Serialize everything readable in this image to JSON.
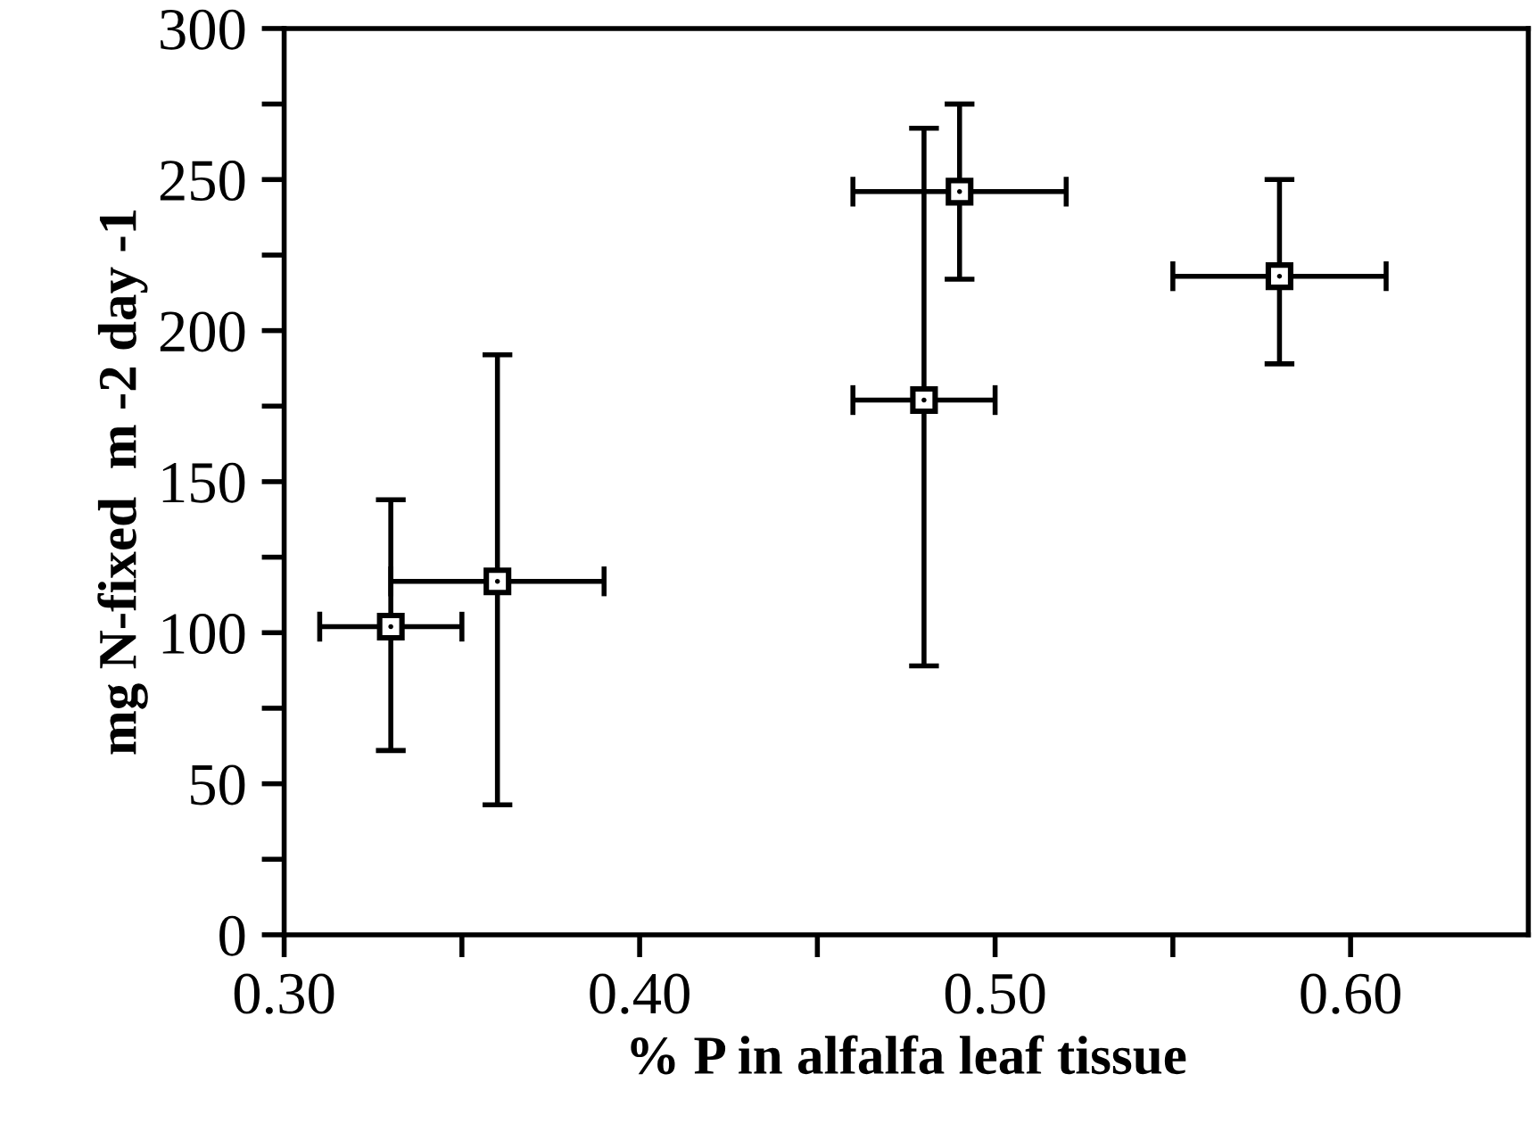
{
  "chart_data": {
    "type": "scatter",
    "xlabel": "% P in alfalfa leaf tissue",
    "ylabel": "mg N-fixed  m -2 day -1",
    "x": [
      0.33,
      0.36,
      0.49,
      0.48,
      0.58
    ],
    "series": [
      {
        "color": "#000000",
        "values": [
          102,
          117,
          246,
          177,
          218
        ],
        "errors": [
          [
            61,
            144
          ],
          [
            43,
            192
          ],
          [
            217,
            275
          ],
          [
            89,
            267
          ],
          [
            189,
            250
          ]
        ],
        "xerrors": [
          [
            0.31,
            0.35
          ],
          [
            0.33,
            0.39
          ],
          [
            0.46,
            0.52
          ],
          [
            0.46,
            0.5
          ],
          [
            0.55,
            0.61
          ]
        ]
      }
    ],
    "xlim": [
      0.3,
      0.65
    ],
    "ylim": [
      0,
      300
    ],
    "xticks": [
      {
        "value": 0.3,
        "label": "0.30"
      },
      {
        "value": 0.35,
        "label": null
      },
      {
        "value": 0.4,
        "label": "0.40"
      },
      {
        "value": 0.45,
        "label": null
      },
      {
        "value": 0.5,
        "label": "0.50"
      },
      {
        "value": 0.55,
        "label": null
      },
      {
        "value": 0.6,
        "label": "0.60"
      }
    ],
    "yticks": [
      0,
      {
        "value": 25,
        "label": null
      },
      50,
      {
        "value": 75,
        "label": null
      },
      100,
      {
        "value": 125,
        "label": null
      },
      150,
      {
        "value": 175,
        "label": null
      },
      200,
      {
        "value": 225,
        "label": null
      },
      250,
      {
        "value": 275,
        "label": null
      },
      300
    ],
    "marker": "square",
    "grid": false,
    "legend": false
  }
}
